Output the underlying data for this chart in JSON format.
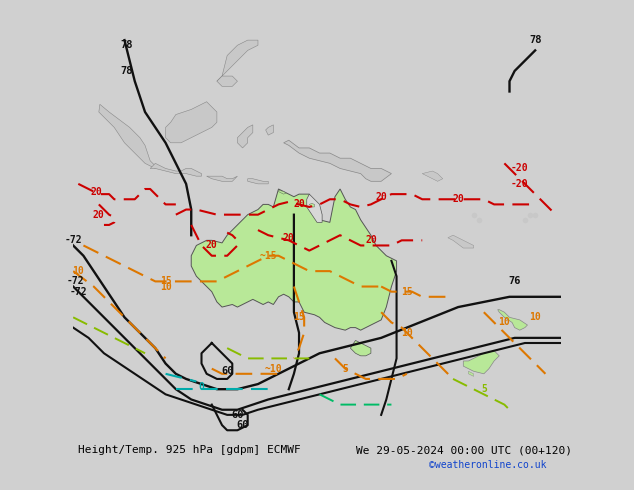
{
  "title_left": "Height/Temp. 925 hPa [gdpm] ECMWF",
  "title_right": "We 29-05-2024 00:00 UTC (00+120)",
  "copyright": "©weatheronline.co.uk",
  "bg_color": "#d0d0d0",
  "ocean_color": "#d8d8d8",
  "land_color": "#c8c8c8",
  "aus_color": "#b8e898",
  "fig_w": 6.34,
  "fig_h": 4.9,
  "dpi": 100,
  "xlim": [
    90,
    185
  ],
  "ylim": [
    -62,
    22
  ],
  "label_fs": 8,
  "copy_color": "#1144cc"
}
